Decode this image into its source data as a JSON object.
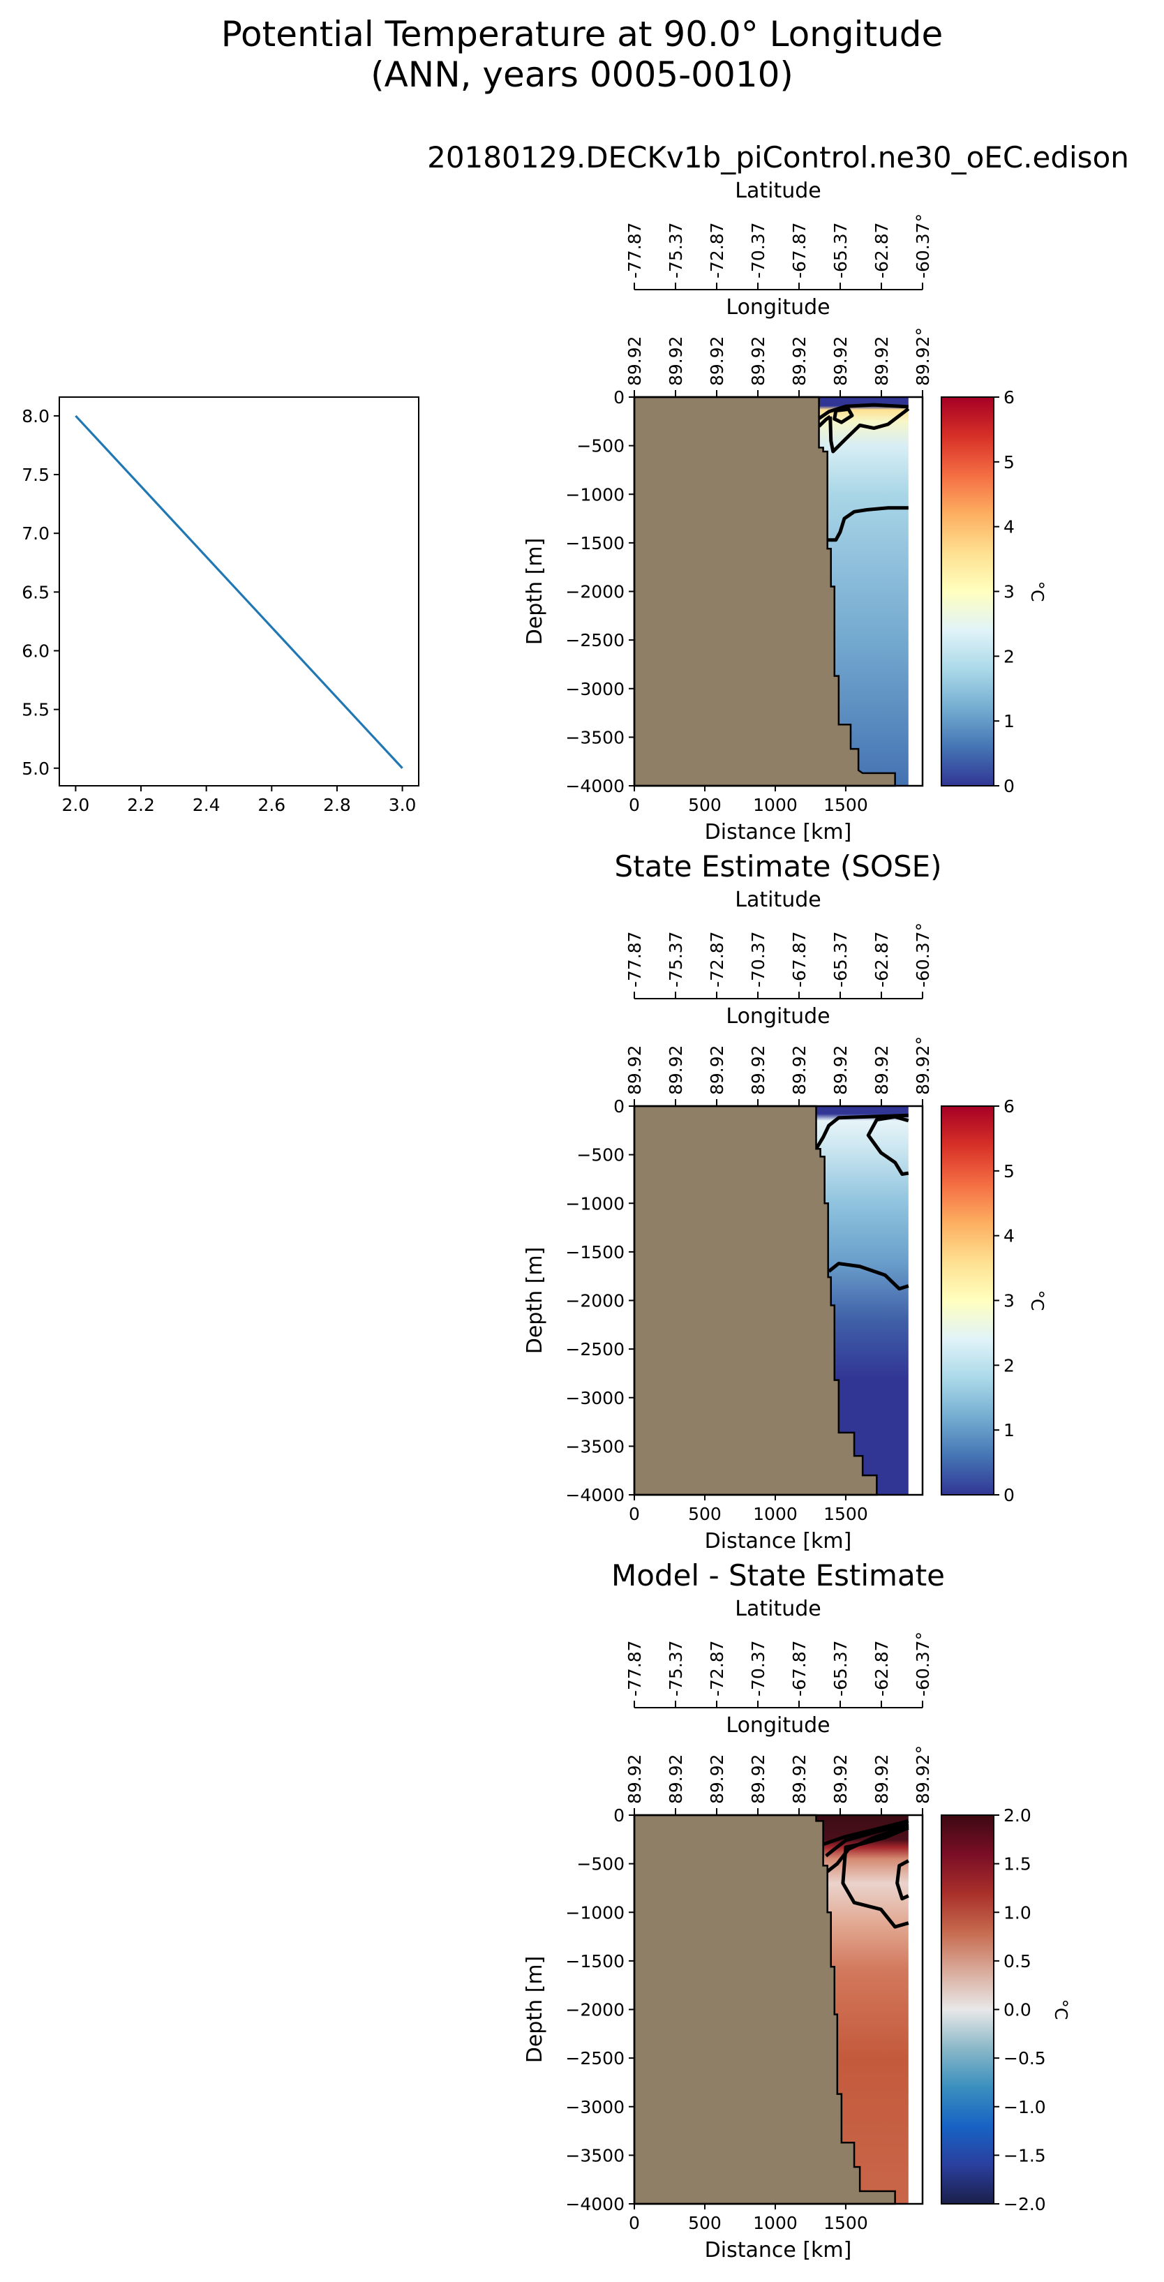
{
  "title": {
    "line1": "Potential Temperature at 90.0° Longitude",
    "line2": "(ANN, years 0005-0010)"
  },
  "chart_data": [
    {
      "type": "line",
      "x": [
        2.0,
        3.0
      ],
      "y": [
        8.0,
        5.0
      ],
      "xlim": [
        1.95,
        3.05
      ],
      "ylim": [
        4.85,
        8.16
      ],
      "xticks": [
        2.0,
        2.2,
        2.4,
        2.6,
        2.8,
        3.0
      ],
      "xtick_labels": [
        "2.0",
        "2.2",
        "2.4",
        "2.6",
        "2.8",
        "3.0"
      ],
      "yticks": [
        5.0,
        5.5,
        6.0,
        6.5,
        7.0,
        7.5,
        8.0
      ],
      "ytick_labels": [
        "5.0",
        "5.5",
        "6.0",
        "6.5",
        "7.0",
        "7.5",
        "8.0"
      ],
      "color": "#1f77b4"
    },
    {
      "type": "heatmap",
      "title": "20180129.DECKv1b_piControl.ne30_oEC.edison",
      "lat_axis": {
        "label": "Latitude",
        "tick_labels": [
          "-77.87",
          "-75.37",
          "-72.87",
          "-70.37",
          "-67.87",
          "-65.37",
          "-62.87",
          "-60.37°"
        ]
      },
      "lon_axis": {
        "label": "Longitude",
        "tick_labels": [
          "89.92",
          "89.92",
          "89.92",
          "89.92",
          "89.92",
          "89.92",
          "89.92",
          "89.92°"
        ]
      },
      "xlabel": "Distance [km]",
      "ylabel": "Depth [m]",
      "xlim": [
        0,
        2045
      ],
      "ylim": [
        -4000,
        0
      ],
      "xticks": [
        0,
        500,
        1000,
        1500
      ],
      "xtick_labels": [
        "0",
        "500",
        "1000",
        "1500"
      ],
      "yticks": [
        0,
        -500,
        -1000,
        -1500,
        -2000,
        -2500,
        -3000,
        -3500,
        -4000
      ],
      "ytick_labels": [
        "0",
        "−500",
        "−1000",
        "−1500",
        "−2000",
        "−2500",
        "−3000",
        "−3500",
        "−4000"
      ],
      "ocean_right_km": 1945,
      "land_color": "#8f7f66",
      "bathymetry": [
        [
          1310,
          0
        ],
        [
          1310,
          -520
        ],
        [
          1340,
          -520
        ],
        [
          1340,
          -560
        ],
        [
          1370,
          -560
        ],
        [
          1370,
          -1560
        ],
        [
          1395,
          -1560
        ],
        [
          1395,
          -1950
        ],
        [
          1420,
          -1950
        ],
        [
          1420,
          -2870
        ],
        [
          1450,
          -2870
        ],
        [
          1450,
          -3370
        ],
        [
          1535,
          -3370
        ],
        [
          1535,
          -3620
        ],
        [
          1590,
          -3620
        ],
        [
          1590,
          -3840
        ],
        [
          1620,
          -3870
        ],
        [
          1850,
          -3870
        ],
        [
          1850,
          -4000
        ]
      ],
      "depth_colors": [
        [
          0,
          "#313695"
        ],
        [
          -90,
          "#313695"
        ],
        [
          -130,
          "#fee090"
        ],
        [
          -250,
          "#f6f6c8"
        ],
        [
          -500,
          "#d8eef5"
        ],
        [
          -1000,
          "#a9d6e6"
        ],
        [
          -1600,
          "#93c3de"
        ],
        [
          -2500,
          "#74a9cf"
        ],
        [
          -4000,
          "#4472b2"
        ]
      ],
      "contours": [
        [
          [
            1310,
            -220
          ],
          [
            1380,
            -150
          ],
          [
            1500,
            -95
          ],
          [
            1700,
            -80
          ],
          [
            1945,
            -100
          ]
        ],
        [
          [
            1310,
            -300
          ],
          [
            1360,
            -230
          ],
          [
            1390,
            -200
          ]
        ],
        [
          [
            1390,
            -200
          ],
          [
            1395,
            -450
          ],
          [
            1410,
            -560
          ],
          [
            1500,
            -430
          ],
          [
            1600,
            -290
          ],
          [
            1700,
            -320
          ],
          [
            1800,
            -280
          ],
          [
            1945,
            -120
          ]
        ],
        [
          [
            1430,
            -140
          ],
          [
            1520,
            -125
          ],
          [
            1545,
            -190
          ],
          [
            1470,
            -260
          ],
          [
            1420,
            -225
          ],
          [
            1430,
            -140
          ]
        ],
        [
          [
            1370,
            -1470
          ],
          [
            1430,
            -1470
          ],
          [
            1460,
            -1390
          ],
          [
            1490,
            -1250
          ],
          [
            1560,
            -1180
          ],
          [
            1650,
            -1160
          ],
          [
            1800,
            -1140
          ],
          [
            1945,
            -1140
          ]
        ]
      ],
      "colorbar": {
        "label": "°C",
        "range": [
          0,
          6
        ],
        "ticks": [
          0,
          1,
          2,
          3,
          4,
          5,
          6
        ],
        "tick_labels": [
          "0",
          "1",
          "2",
          "3",
          "4",
          "5",
          "6"
        ],
        "colors": [
          "#313695",
          "#4575b4",
          "#74add1",
          "#abd9e9",
          "#e0f3f8",
          "#ffffbf",
          "#fee090",
          "#fdae61",
          "#f46d43",
          "#d73027",
          "#a50026"
        ]
      }
    },
    {
      "type": "heatmap",
      "title": "State Estimate (SOSE)",
      "lat_axis": {
        "label": "Latitude",
        "tick_labels": [
          "-77.87",
          "-75.37",
          "-72.87",
          "-70.37",
          "-67.87",
          "-65.37",
          "-62.87",
          "-60.37°"
        ]
      },
      "lon_axis": {
        "label": "Longitude",
        "tick_labels": [
          "89.92",
          "89.92",
          "89.92",
          "89.92",
          "89.92",
          "89.92",
          "89.92",
          "89.92°"
        ]
      },
      "xlabel": "Distance [km]",
      "ylabel": "Depth [m]",
      "xlim": [
        0,
        2045
      ],
      "ylim": [
        -4000,
        0
      ],
      "xticks": [
        0,
        500,
        1000,
        1500
      ],
      "xtick_labels": [
        "0",
        "500",
        "1000",
        "1500"
      ],
      "yticks": [
        0,
        -500,
        -1000,
        -1500,
        -2000,
        -2500,
        -3000,
        -3500,
        -4000
      ],
      "ytick_labels": [
        "0",
        "−500",
        "−1000",
        "−1500",
        "−2000",
        "−2500",
        "−3000",
        "−3500",
        "−4000"
      ],
      "ocean_right_km": 1945,
      "land_color": "#8f7f66",
      "bathymetry": [
        [
          1290,
          0
        ],
        [
          1290,
          -440
        ],
        [
          1320,
          -440
        ],
        [
          1320,
          -520
        ],
        [
          1350,
          -520
        ],
        [
          1350,
          -1000
        ],
        [
          1375,
          -1000
        ],
        [
          1375,
          -1760
        ],
        [
          1395,
          -1760
        ],
        [
          1395,
          -2050
        ],
        [
          1420,
          -2050
        ],
        [
          1420,
          -2820
        ],
        [
          1450,
          -2820
        ],
        [
          1450,
          -3360
        ],
        [
          1560,
          -3360
        ],
        [
          1560,
          -3600
        ],
        [
          1620,
          -3600
        ],
        [
          1620,
          -3800
        ],
        [
          1720,
          -3800
        ],
        [
          1720,
          -4000
        ]
      ],
      "depth_colors": [
        [
          0,
          "#313695"
        ],
        [
          -80,
          "#313695"
        ],
        [
          -150,
          "#e6f4f8"
        ],
        [
          -400,
          "#cfe8f1"
        ],
        [
          -1000,
          "#8fc3de"
        ],
        [
          -1600,
          "#6a9fcb"
        ],
        [
          -2200,
          "#4060a8"
        ],
        [
          -2800,
          "#313695"
        ],
        [
          -4000,
          "#313695"
        ]
      ],
      "contours": [
        [
          [
            1290,
            -440
          ],
          [
            1340,
            -320
          ],
          [
            1380,
            -200
          ],
          [
            1450,
            -120
          ],
          [
            1945,
            -95
          ]
        ],
        [
          [
            1945,
            -150
          ],
          [
            1850,
            -110
          ],
          [
            1720,
            -140
          ],
          [
            1660,
            -300
          ],
          [
            1750,
            -480
          ],
          [
            1850,
            -580
          ],
          [
            1900,
            -700
          ],
          [
            1945,
            -690
          ]
        ],
        [
          [
            1380,
            -1700
          ],
          [
            1450,
            -1620
          ],
          [
            1600,
            -1650
          ],
          [
            1780,
            -1740
          ],
          [
            1880,
            -1880
          ],
          [
            1945,
            -1850
          ]
        ]
      ],
      "colorbar": {
        "label": "°C",
        "range": [
          0,
          6
        ],
        "ticks": [
          0,
          1,
          2,
          3,
          4,
          5,
          6
        ],
        "tick_labels": [
          "0",
          "1",
          "2",
          "3",
          "4",
          "5",
          "6"
        ],
        "colors": [
          "#313695",
          "#4575b4",
          "#74add1",
          "#abd9e9",
          "#e0f3f8",
          "#ffffbf",
          "#fee090",
          "#fdae61",
          "#f46d43",
          "#d73027",
          "#a50026"
        ]
      }
    },
    {
      "type": "heatmap",
      "title": "Model - State Estimate",
      "lat_axis": {
        "label": "Latitude",
        "tick_labels": [
          "-77.87",
          "-75.37",
          "-72.87",
          "-70.37",
          "-67.87",
          "-65.37",
          "-62.87",
          "-60.37°"
        ]
      },
      "lon_axis": {
        "label": "Longitude",
        "tick_labels": [
          "89.92",
          "89.92",
          "89.92",
          "89.92",
          "89.92",
          "89.92",
          "89.92",
          "89.92°"
        ]
      },
      "xlabel": "Distance [km]",
      "ylabel": "Depth [m]",
      "xlim": [
        0,
        2045
      ],
      "ylim": [
        -4000,
        0
      ],
      "xticks": [
        0,
        500,
        1000,
        1500
      ],
      "xtick_labels": [
        "0",
        "500",
        "1000",
        "1500"
      ],
      "yticks": [
        0,
        -500,
        -1000,
        -1500,
        -2000,
        -2500,
        -3000,
        -3500,
        -4000
      ],
      "ytick_labels": [
        "0",
        "−500",
        "−1000",
        "−1500",
        "−2000",
        "−2500",
        "−3000",
        "−3500",
        "−4000"
      ],
      "ocean_right_km": 1945,
      "land_color": "#8f7f66",
      "bathymetry": [
        [
          1290,
          0
        ],
        [
          1290,
          -60
        ],
        [
          1340,
          -60
        ],
        [
          1340,
          -520
        ],
        [
          1370,
          -520
        ],
        [
          1370,
          -1000
        ],
        [
          1395,
          -1000
        ],
        [
          1395,
          -1560
        ],
        [
          1420,
          -1560
        ],
        [
          1420,
          -2050
        ],
        [
          1440,
          -2050
        ],
        [
          1440,
          -2870
        ],
        [
          1470,
          -2870
        ],
        [
          1470,
          -3370
        ],
        [
          1560,
          -3370
        ],
        [
          1560,
          -3620
        ],
        [
          1600,
          -3620
        ],
        [
          1600,
          -3870
        ],
        [
          1850,
          -3870
        ],
        [
          1850,
          -4000
        ]
      ],
      "depth_colors": [
        [
          0,
          "#3d0c14"
        ],
        [
          -250,
          "#4a0f1a"
        ],
        [
          -330,
          "#a3262c"
        ],
        [
          -450,
          "#d58a72"
        ],
        [
          -700,
          "#ead3cc"
        ],
        [
          -1100,
          "#e2aa94"
        ],
        [
          -1600,
          "#d2785c"
        ],
        [
          -2500,
          "#c45a3c"
        ],
        [
          -4000,
          "#c9664a"
        ]
      ],
      "contours": [
        [
          [
            1340,
            -300
          ],
          [
            1500,
            -220
          ],
          [
            1700,
            -150
          ],
          [
            1945,
            -60
          ]
        ],
        [
          [
            1360,
            -420
          ],
          [
            1420,
            -350
          ],
          [
            1500,
            -260
          ],
          [
            1700,
            -180
          ],
          [
            1945,
            -90
          ]
        ],
        [
          [
            1370,
            -580
          ],
          [
            1440,
            -500
          ],
          [
            1520,
            -350
          ],
          [
            1700,
            -230
          ],
          [
            1945,
            -110
          ]
        ],
        [
          [
            1945,
            -130
          ],
          [
            1780,
            -230
          ],
          [
            1600,
            -300
          ],
          [
            1500,
            -330
          ],
          [
            1480,
            -700
          ],
          [
            1560,
            -900
          ],
          [
            1750,
            -970
          ],
          [
            1850,
            -1150
          ],
          [
            1945,
            -1110
          ]
        ],
        [
          [
            1945,
            -470
          ],
          [
            1880,
            -520
          ],
          [
            1865,
            -700
          ],
          [
            1900,
            -860
          ],
          [
            1945,
            -830
          ]
        ]
      ],
      "colorbar": {
        "label": "°C",
        "range": [
          -2.0,
          2.0
        ],
        "ticks": [
          -2.0,
          -1.5,
          -1.0,
          -0.5,
          0.0,
          0.5,
          1.0,
          1.5,
          2.0
        ],
        "tick_labels": [
          "−2.0",
          "−1.5",
          "−1.0",
          "−0.5",
          "0.0",
          "0.5",
          "1.0",
          "1.5",
          "2.0"
        ],
        "colors": [
          "#1b1f4a",
          "#2a3f9e",
          "#1763c4",
          "#3a8fbe",
          "#8ab8c8",
          "#e8e8e8",
          "#d9aa9a",
          "#c66a4e",
          "#a82f2a",
          "#7a0e26",
          "#3c0912"
        ]
      }
    }
  ]
}
